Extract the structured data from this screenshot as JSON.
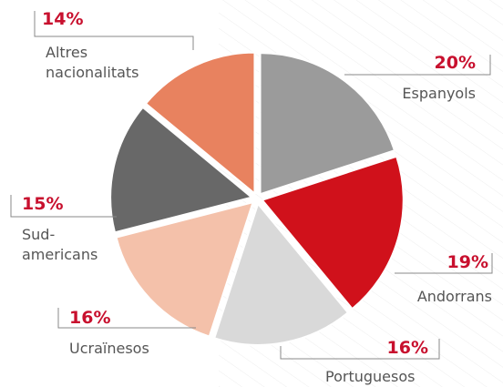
{
  "chart_data": {
    "type": "pie",
    "categories": [
      "Espanyols",
      "Andorrans",
      "Portuguesos",
      "Ucraïnesos",
      "Sud-americans",
      "Altres nacionalitats"
    ],
    "values": [
      20,
      19,
      16,
      16,
      15,
      14
    ],
    "value_labels": [
      "20%",
      "19%",
      "16%",
      "16%",
      "15%",
      "14%"
    ],
    "colors": [
      "#9b9b9b",
      "#d0111b",
      "#d9d9d9",
      "#f4c1aa",
      "#686868",
      "#e8825f"
    ]
  }
}
